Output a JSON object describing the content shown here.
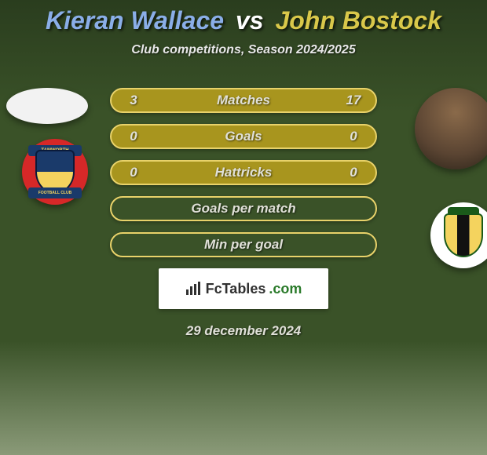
{
  "header": {
    "player1": "Kieran Wallace",
    "vs": "vs",
    "player2": "John Bostock",
    "subtitle": "Club competitions, Season 2024/2025",
    "player1_color": "#8aaee8",
    "player2_color": "#d9c84a"
  },
  "crest_left": {
    "top_text": "TAMWORTH",
    "bottom_text": "FOOTBALL CLUB"
  },
  "comparison": {
    "row_fill_color": "#a8951e",
    "row_border_color": "#e8d26a",
    "text_color": "#e0e0d8",
    "rows": [
      {
        "left": "3",
        "label": "Matches",
        "right": "17"
      },
      {
        "left": "0",
        "label": "Goals",
        "right": "0"
      },
      {
        "left": "0",
        "label": "Hattricks",
        "right": "0"
      },
      {
        "left": "",
        "label": "Goals per match",
        "right": ""
      },
      {
        "left": "",
        "label": "Min per goal",
        "right": ""
      }
    ]
  },
  "brand": {
    "name": "FcTables",
    "tld": ".com"
  },
  "date": "29 december 2024",
  "background": {
    "gradient_top": "#2a3d1e",
    "gradient_mid": "#3a5228",
    "gradient_bottom": "#8a9a78"
  }
}
